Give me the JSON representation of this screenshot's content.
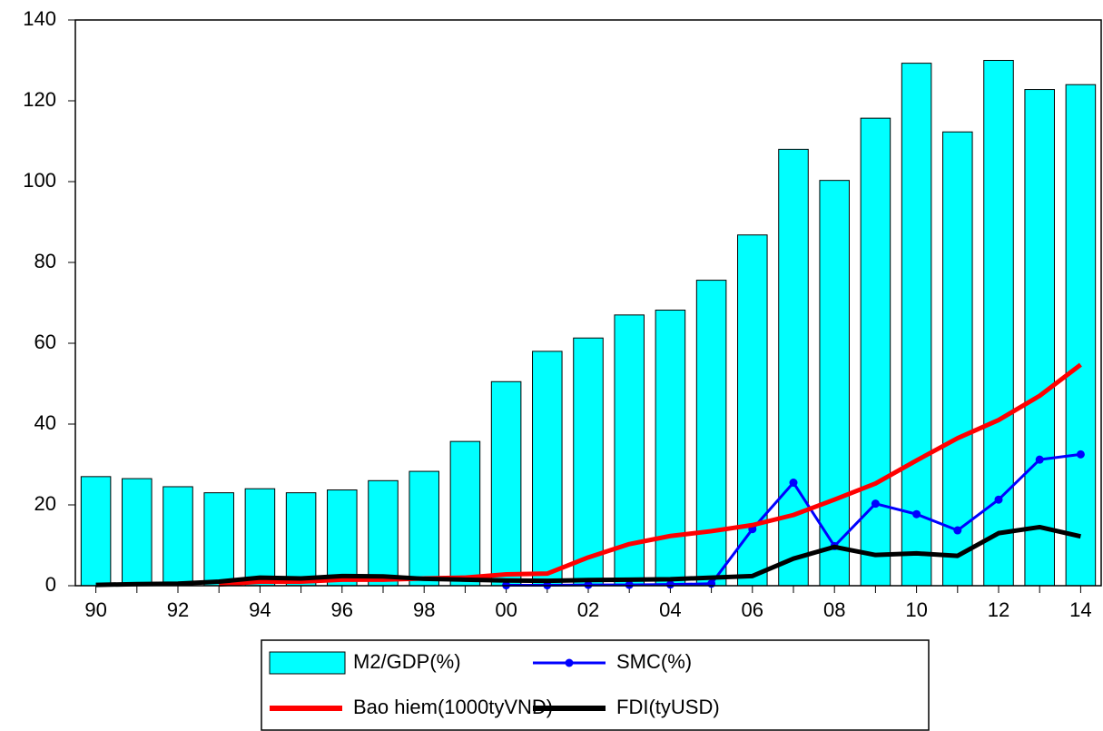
{
  "chart_data": {
    "type": "bar",
    "categories": [
      "90",
      null,
      "92",
      null,
      "94",
      null,
      "96",
      null,
      "98",
      null,
      "00",
      null,
      "02",
      null,
      "04",
      null,
      "06",
      null,
      "08",
      null,
      "10",
      null,
      "12",
      null,
      "14"
    ],
    "series": [
      {
        "name": "M2/GDP(%)",
        "type": "bar",
        "color": "#00ffff",
        "values": [
          27,
          26.5,
          24.5,
          23,
          24,
          23,
          23.7,
          26,
          28.3,
          35.7,
          50.5,
          58,
          61.3,
          67,
          68.2,
          75.6,
          86.8,
          108,
          100.3,
          115.7,
          129.3,
          112.3,
          130,
          122.8,
          124
        ]
      },
      {
        "name": "SMC(%)",
        "type": "line",
        "markers": true,
        "color": "#0000ff",
        "values": [
          null,
          null,
          null,
          null,
          null,
          null,
          null,
          null,
          null,
          null,
          0.1,
          0.1,
          0.2,
          0.2,
          0.3,
          0.5,
          14,
          25.5,
          9.8,
          20.3,
          17.7,
          13.7,
          21.3,
          31.2,
          32.5
        ]
      },
      {
        "name": "Bao hiem(1000tyVND)",
        "type": "line",
        "color": "#ff0000",
        "values": [
          null,
          null,
          null,
          0.3,
          1,
          1,
          1.5,
          1.5,
          1.8,
          2,
          2.8,
          3,
          7,
          10.3,
          12.3,
          13.5,
          15,
          17.5,
          21.3,
          25.3,
          31,
          36.5,
          41,
          47,
          54.7
        ]
      },
      {
        "name": "FDI(tyUSD)",
        "type": "line",
        "color": "#000000",
        "values": [
          0.2,
          0.4,
          0.5,
          1,
          2,
          1.8,
          2.4,
          2.3,
          1.7,
          1.5,
          1.3,
          1.2,
          1.4,
          1.5,
          1.6,
          2,
          2.4,
          6.7,
          9.6,
          7.6,
          8,
          7.4,
          13,
          14.5,
          12.2
        ]
      }
    ],
    "ylim": [
      0,
      140
    ],
    "yticks": [
      0,
      20,
      40,
      60,
      80,
      100,
      120,
      140
    ],
    "grid": false,
    "legend": "bottom"
  }
}
